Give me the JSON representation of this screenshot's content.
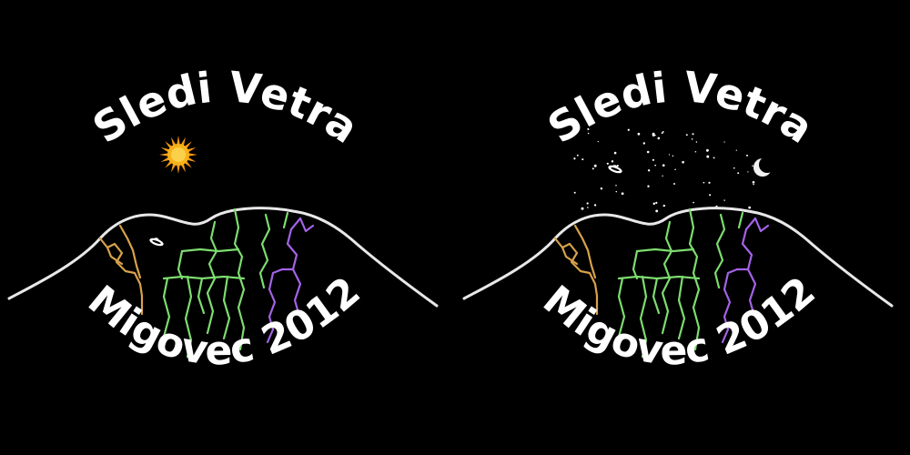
{
  "panels": [
    {
      "id": "day",
      "top_text": "Sledi Vetra",
      "bottom_text": "Migovec 2012",
      "sky": "sun"
    },
    {
      "id": "night",
      "top_text": "Sledi Vetra",
      "bottom_text": "Migovec 2012",
      "sky": "moon-and-stars"
    }
  ],
  "colors": {
    "background": "#000000",
    "text": "#ffffff",
    "mountain_outline": "#e8e8e8",
    "cave_orange": "#d7a24a",
    "cave_green": "#7ddc6f",
    "cave_purple": "#a463e6",
    "sun": "#f7b21a",
    "moon": "#f2f2f2"
  },
  "icons": [
    "sun-icon",
    "moon-icon",
    "ufo-icon",
    "star-icon"
  ]
}
